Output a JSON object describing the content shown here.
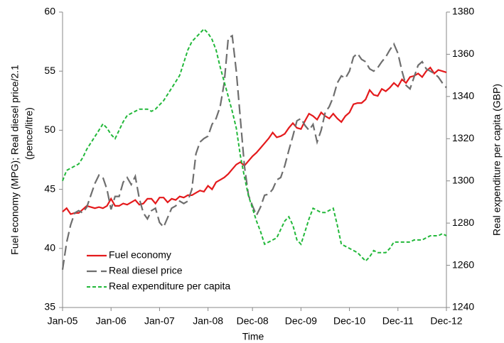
{
  "chart_data": {
    "type": "line",
    "categories": [
      "Jan-05",
      null,
      null,
      null,
      null,
      null,
      null,
      null,
      null,
      null,
      null,
      null,
      "Jan-06",
      null,
      null,
      null,
      null,
      null,
      null,
      null,
      null,
      null,
      null,
      null,
      "Jan-07",
      null,
      null,
      null,
      null,
      null,
      null,
      null,
      null,
      null,
      null,
      null,
      "Jan-08",
      null,
      null,
      null,
      null,
      null,
      null,
      null,
      null,
      null,
      null,
      "Dec-08",
      null,
      null,
      null,
      null,
      null,
      null,
      null,
      null,
      null,
      null,
      null,
      "Dec-09",
      null,
      null,
      null,
      null,
      null,
      null,
      null,
      null,
      null,
      null,
      null,
      "Dec-10",
      null,
      null,
      null,
      null,
      null,
      null,
      null,
      null,
      null,
      null,
      null,
      "Dec-11",
      null,
      null,
      null,
      null,
      null,
      null,
      null,
      null,
      null,
      null,
      null,
      "Dec-12"
    ],
    "xlabel": "Time",
    "ylabel": [
      "Fuel economy (MPG); Real diesel price/2.1",
      "(pence/litre)"
    ],
    "y2label": "Real expenditure per capita (GBP)",
    "ylim": [
      35,
      60
    ],
    "yticks": [
      35,
      40,
      45,
      50,
      55,
      60
    ],
    "y2lim": [
      1240,
      1380
    ],
    "y2ticks": [
      1240,
      1260,
      1280,
      1300,
      1320,
      1340,
      1360,
      1380
    ],
    "series": [
      {
        "name": "Fuel economy",
        "color": "#e41a1c",
        "linestyle": "solid",
        "axis": "y",
        "values": [
          43.1,
          43.4,
          42.9,
          43.0,
          43.0,
          43.3,
          43.6,
          43.5,
          43.4,
          43.5,
          43.4,
          43.6,
          44.2,
          43.6,
          43.6,
          43.8,
          43.7,
          43.9,
          44.1,
          43.7,
          43.8,
          44.2,
          44.2,
          43.8,
          44.3,
          44.3,
          43.9,
          44.2,
          44.1,
          44.4,
          44.3,
          44.5,
          44.5,
          44.7,
          44.9,
          44.8,
          45.3,
          45.0,
          45.6,
          45.8,
          46.0,
          46.3,
          46.7,
          47.1,
          47.3,
          47.0,
          47.4,
          47.8,
          48.1,
          48.5,
          48.9,
          49.3,
          49.8,
          49.4,
          49.5,
          49.7,
          50.2,
          50.6,
          50.2,
          50.1,
          50.8,
          51.4,
          51.2,
          50.9,
          51.5,
          51.2,
          51.0,
          51.4,
          51.0,
          50.7,
          51.2,
          51.5,
          52.2,
          52.3,
          52.3,
          52.6,
          53.4,
          53.0,
          52.9,
          53.5,
          53.3,
          53.6,
          54.0,
          53.7,
          54.3,
          54.0,
          54.5,
          54.6,
          54.8,
          54.5,
          55.0,
          55.3,
          54.8,
          55.1,
          55.0,
          54.9
        ]
      },
      {
        "name": "Real diesel price",
        "color": "#6e6e6e",
        "linestyle": "dashed",
        "axis": "y",
        "values": [
          38.2,
          40.5,
          42.0,
          43.0,
          43.2,
          43.0,
          43.5,
          44.5,
          45.5,
          46.2,
          46.0,
          45.0,
          43.3,
          44.4,
          44.4,
          45.6,
          46.0,
          45.4,
          46.1,
          44.2,
          43.0,
          42.5,
          43.2,
          43.4,
          42.2,
          41.8,
          42.6,
          43.4,
          43.6,
          44.0,
          43.8,
          44.0,
          45.0,
          48.0,
          49.0,
          49.3,
          49.5,
          50.5,
          51.0,
          52.0,
          54.0,
          57.8,
          58.0,
          55.0,
          51.0,
          47.0,
          44.5,
          43.6,
          42.8,
          43.5,
          44.5,
          44.6,
          45.0,
          45.8,
          46.0,
          47.0,
          48.3,
          49.5,
          50.8,
          51.0,
          50.4,
          50.0,
          50.5,
          49.0,
          50.0,
          51.5,
          52.0,
          52.8,
          54.0,
          54.6,
          54.4,
          55.0,
          56.2,
          56.5,
          56.0,
          55.8,
          55.2,
          55.0,
          55.3,
          55.8,
          56.2,
          56.8,
          57.3,
          56.5,
          55.0,
          53.8,
          53.5,
          54.5,
          55.5,
          55.8,
          55.2,
          55.0,
          54.8,
          54.5,
          54.0,
          53.6
        ]
      },
      {
        "name": "Real expenditure per capita",
        "color": "#22b83a",
        "linestyle": "dotted",
        "axis": "y2",
        "values": [
          1300,
          1305,
          1306,
          1307,
          1308,
          1311,
          1315,
          1318,
          1321,
          1324,
          1327,
          1325,
          1322,
          1320,
          1324,
          1328,
          1331,
          1332,
          1333,
          1334,
          1334,
          1334,
          1333,
          1334,
          1336,
          1338,
          1341,
          1344,
          1347,
          1350,
          1356,
          1362,
          1366,
          1368,
          1370,
          1372,
          1370,
          1367,
          1362,
          1354,
          1347,
          1340,
          1333,
          1325,
          1312,
          1302,
          1293,
          1287,
          1281,
          1276,
          1270,
          1271,
          1272,
          1273,
          1277,
          1281,
          1283,
          1279,
          1272,
          1270,
          1276,
          1282,
          1287,
          1286,
          1285,
          1285,
          1286,
          1287,
          1279,
          1270,
          1269,
          1268,
          1267,
          1266,
          1264,
          1262,
          1264,
          1267,
          1266,
          1266,
          1266,
          1268,
          1271,
          1271,
          1271,
          1271,
          1271,
          1272,
          1272,
          1272,
          1273,
          1274,
          1274,
          1274,
          1275,
          1274
        ]
      }
    ]
  }
}
